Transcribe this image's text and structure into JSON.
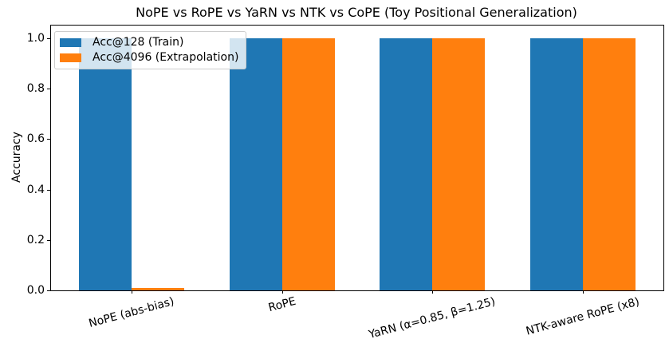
{
  "chart_data": {
    "type": "bar",
    "title": "NoPE vs RoPE vs YaRN vs NTK vs CoPE (Toy Positional Generalization)",
    "xlabel": "",
    "ylabel": "Accuracy",
    "categories": [
      "NoPE (abs-bias)",
      "RoPE",
      "YaRN (α=0.85, β=1.25)",
      "NTK-aware RoPE (x8)"
    ],
    "series": [
      {
        "name": "Acc@128 (Train)",
        "color": "#1f77b4",
        "values": [
          1.0,
          1.0,
          1.0,
          1.0
        ]
      },
      {
        "name": "Acc@4096 (Extrapolation)",
        "color": "#ff7f0e",
        "values": [
          0.01,
          1.0,
          1.0,
          1.0
        ]
      }
    ],
    "bar_width": 0.35,
    "ylim": [
      0,
      1.05
    ],
    "yticks": [
      0.0,
      0.2,
      0.4,
      0.6,
      0.8,
      1.0
    ],
    "ytick_labels": [
      "0.0",
      "0.2",
      "0.4",
      "0.6",
      "0.8",
      "1.0"
    ],
    "xtick_rotation_deg": 15,
    "legend_position": "upper left",
    "grid": false,
    "colors": {
      "axes": "#000000",
      "legend_edge": "#cccccc",
      "background": "#ffffff"
    }
  }
}
